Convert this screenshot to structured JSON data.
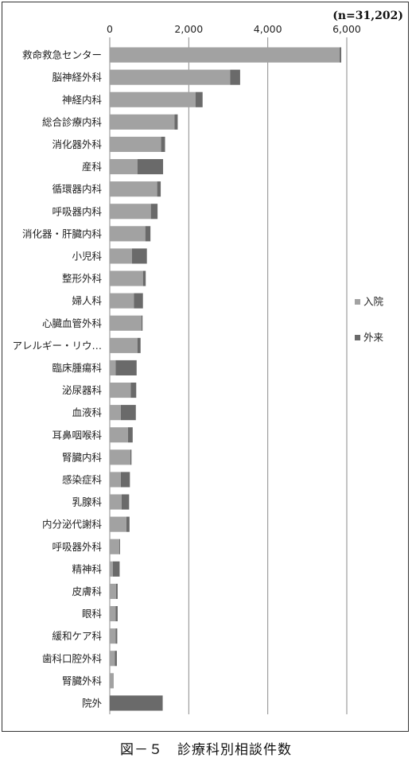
{
  "caption": "図－５　診療科別相談件数",
  "chart_data": {
    "type": "bar",
    "orientation": "horizontal",
    "stacked": true,
    "title": "",
    "n_label": "(n=31,202)",
    "xlabel": "",
    "ylabel": "",
    "xlim": [
      0,
      6000
    ],
    "xticks": [
      0,
      2000,
      4000,
      6000
    ],
    "xtick_labels": [
      "0",
      "2,000",
      "4,000",
      "6,000"
    ],
    "grid": true,
    "legend_position": "right",
    "categories": [
      "救命救急センター",
      "脳神経外科",
      "神経内科",
      "総合診療内科",
      "消化器外科",
      "産科",
      "循環器内科",
      "呼吸器内科",
      "消化器・肝臓内科",
      "小児科",
      "整形外科",
      "婦人科",
      "心臓血管外科",
      "アレルギー・リウ…",
      "臨床腫瘍科",
      "泌尿器科",
      "血液科",
      "耳鼻咽喉科",
      "腎臓内科",
      "感染症科",
      "乳腺科",
      "内分泌代謝科",
      "呼吸器外科",
      "精神科",
      "皮膚科",
      "眼科",
      "緩和ケア科",
      "歯科口腔外科",
      "腎臓外科",
      "院外"
    ],
    "series": [
      {
        "name": "入院",
        "color": "#a2a2a2",
        "values": [
          5820,
          3050,
          2170,
          1640,
          1300,
          700,
          1200,
          1040,
          900,
          560,
          840,
          610,
          800,
          700,
          150,
          530,
          280,
          460,
          520,
          280,
          300,
          420,
          240,
          80,
          160,
          150,
          150,
          130,
          100,
          0
        ]
      },
      {
        "name": "外来",
        "color": "#6a6a6a",
        "values": [
          40,
          250,
          180,
          80,
          100,
          650,
          90,
          170,
          130,
          380,
          70,
          230,
          30,
          80,
          530,
          140,
          380,
          120,
          30,
          230,
          190,
          80,
          20,
          170,
          40,
          50,
          40,
          50,
          0,
          1340
        ]
      }
    ]
  }
}
